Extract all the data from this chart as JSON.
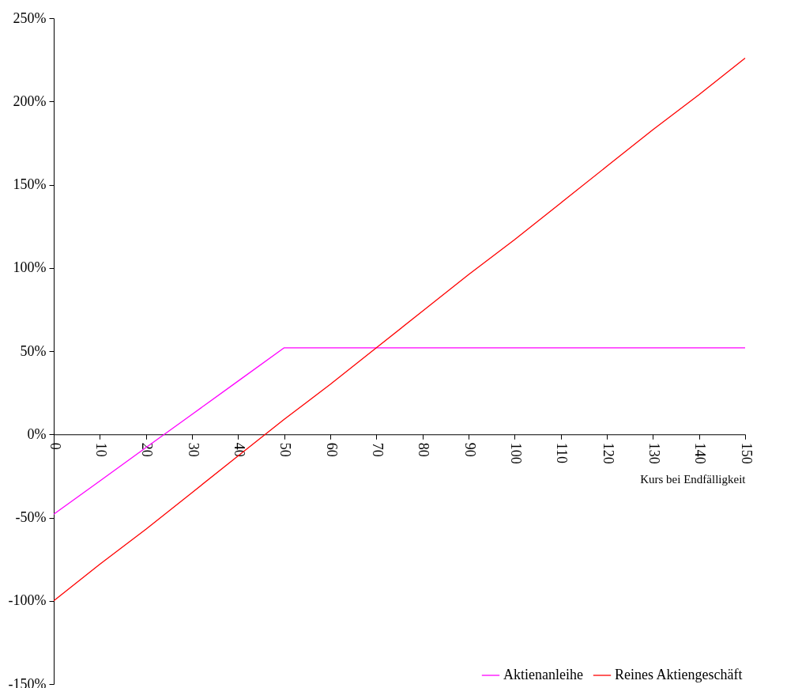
{
  "chart_data": {
    "type": "line",
    "xlabel": "Kurs bei Endfälligkeit",
    "x": [
      0,
      10,
      20,
      30,
      40,
      50,
      60,
      70,
      80,
      90,
      100,
      110,
      120,
      130,
      140,
      150
    ],
    "series": [
      {
        "name": "Aktienanleihe",
        "color": "#ff00ff",
        "values": [
          -48,
          -28,
          -8,
          12,
          32,
          52,
          52,
          52,
          52,
          52,
          52,
          52,
          52,
          52,
          52,
          52
        ]
      },
      {
        "name": "Reines Aktiengeschäft",
        "color": "#ff0000",
        "values": [
          -100,
          -78,
          -57,
          -35,
          -13,
          9,
          30,
          52,
          74,
          96,
          117,
          139,
          161,
          183,
          204,
          226
        ]
      }
    ],
    "xlim": [
      0,
      150
    ],
    "xticks": [
      0,
      10,
      20,
      30,
      40,
      50,
      60,
      70,
      80,
      90,
      100,
      110,
      120,
      130,
      140,
      150
    ],
    "ylim": [
      -150,
      250
    ],
    "yticks": [
      {
        "value": -150,
        "label": "-150%"
      },
      {
        "value": -100,
        "label": "-100%"
      },
      {
        "value": -50,
        "label": "-50%"
      },
      {
        "value": 0,
        "label": "0%"
      },
      {
        "value": 50,
        "label": "50%"
      },
      {
        "value": 100,
        "label": "100%"
      },
      {
        "value": 150,
        "label": "150%"
      },
      {
        "value": 200,
        "label": "200%"
      },
      {
        "value": 250,
        "label": "250%"
      }
    ],
    "legend": "bottom right",
    "grid": false,
    "marker": "none",
    "line_style": "solid"
  }
}
